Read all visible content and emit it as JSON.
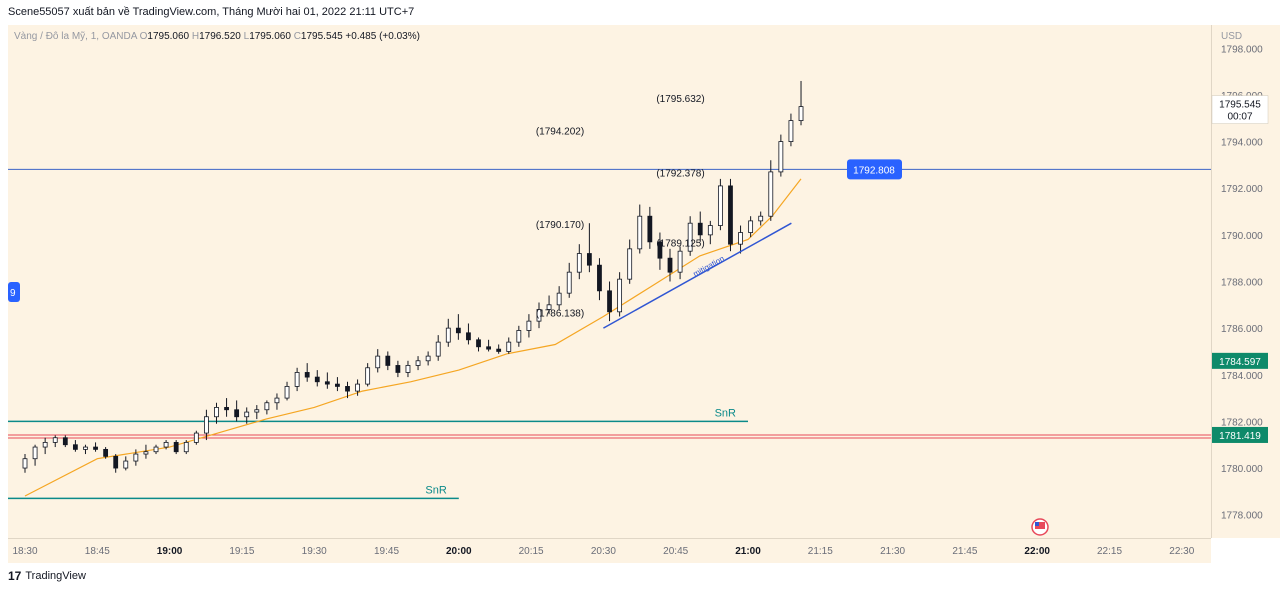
{
  "header": {
    "text": "Scene55057 xuất bản về TradingView.com, Tháng Mười hai 01, 2022 21:11 UTC+7"
  },
  "ohlc": {
    "symbol": "Vàng / Đô la Mỹ, 1, OANDA",
    "o_label": "O",
    "o": "1795.060",
    "h_label": "H",
    "h": "1796.520",
    "l_label": "L",
    "l": "1795.060",
    "c_label": "C",
    "c": "1795.545",
    "change": "+0.485 (+0.03%)"
  },
  "price_axis": {
    "currency": "USD"
  },
  "left_badge": "9",
  "footer": {
    "logo": "17",
    "brand": "TradingView"
  },
  "colors": {
    "background": "#fdf3e3",
    "ema": "#f5a623",
    "snr": "#0b8a8a",
    "hline": "#3d64c7",
    "red_line": "#e8485a",
    "trend": "#3056d3",
    "badge_blue": "#2962ff",
    "badge_green": "#0e8a6a"
  },
  "chart_data": {
    "type": "candlestick",
    "ylim": [
      1777.0,
      1799.0
    ],
    "y_ticks": [
      "1778.000",
      "1780.000",
      "1782.000",
      "1784.000",
      "1786.000",
      "1788.000",
      "1790.000",
      "1792.000",
      "1794.000",
      "1796.000",
      "1798.000"
    ],
    "x_ticks": [
      {
        "label": "18:30",
        "bold": false
      },
      {
        "label": "18:45",
        "bold": false
      },
      {
        "label": "19:00",
        "bold": true
      },
      {
        "label": "19:15",
        "bold": false
      },
      {
        "label": "19:30",
        "bold": false
      },
      {
        "label": "19:45",
        "bold": false
      },
      {
        "label": "20:00",
        "bold": true
      },
      {
        "label": "20:15",
        "bold": false
      },
      {
        "label": "20:30",
        "bold": false
      },
      {
        "label": "20:45",
        "bold": false
      },
      {
        "label": "21:00",
        "bold": true
      },
      {
        "label": "21:15",
        "bold": false
      },
      {
        "label": "21:30",
        "bold": false
      },
      {
        "label": "21:45",
        "bold": false
      },
      {
        "label": "22:00",
        "bold": true
      },
      {
        "label": "22:15",
        "bold": false
      },
      {
        "label": "22:30",
        "bold": false
      }
    ],
    "time_start": "18:30",
    "current_price": "1795.545",
    "countdown": "00:07",
    "horizontal_lines": [
      {
        "name": "blue-level",
        "price": 1792.808,
        "label": "1792.808"
      },
      {
        "name": "red-level-1",
        "price": 1781.419,
        "label": "1781.419"
      },
      {
        "name": "red-level-2",
        "price": 1781.29,
        "label": ""
      }
    ],
    "price_badges": [
      {
        "name": "green-price-badge",
        "price": 1784.597,
        "label": "1784.597"
      }
    ],
    "snr_lines": [
      {
        "price": 1782.0,
        "t_start": "18:30",
        "t_end": "21:00",
        "label": "SnR"
      },
      {
        "price": 1778.7,
        "t_start": "18:30",
        "t_end": "20:00",
        "label": "SnR"
      }
    ],
    "annotations": [
      {
        "text": "(1795.632)",
        "t": "20:46",
        "price": 1795.7
      },
      {
        "text": "(1794.202)",
        "t": "20:21",
        "price": 1794.3
      },
      {
        "text": "(1792.378)",
        "t": "20:46",
        "price": 1792.5
      },
      {
        "text": "(1790.170)",
        "t": "20:21",
        "price": 1790.3
      },
      {
        "text": "(1786.138)",
        "t": "20:21",
        "price": 1786.5
      },
      {
        "text": "(1789.125)",
        "t": "20:46",
        "price": 1789.5
      }
    ],
    "trendline": {
      "t1": "20:30",
      "p1": 1786.0,
      "t2": "21:09",
      "p2": 1790.5,
      "label": "mitigation"
    },
    "ema": [
      {
        "t": "18:30",
        "p": 1778.8
      },
      {
        "t": "18:45",
        "p": 1780.4
      },
      {
        "t": "19:00",
        "p": 1780.9
      },
      {
        "t": "19:10",
        "p": 1781.5
      },
      {
        "t": "19:20",
        "p": 1782.1
      },
      {
        "t": "19:30",
        "p": 1782.6
      },
      {
        "t": "19:40",
        "p": 1783.3
      },
      {
        "t": "19:50",
        "p": 1783.7
      },
      {
        "t": "20:00",
        "p": 1784.2
      },
      {
        "t": "20:10",
        "p": 1784.9
      },
      {
        "t": "20:20",
        "p": 1785.3
      },
      {
        "t": "20:30",
        "p": 1786.5
      },
      {
        "t": "20:40",
        "p": 1787.8
      },
      {
        "t": "20:50",
        "p": 1789.1
      },
      {
        "t": "21:00",
        "p": 1789.8
      },
      {
        "t": "21:05",
        "p": 1790.8
      },
      {
        "t": "21:11",
        "p": 1792.4
      }
    ],
    "candles": [
      [
        1780.0,
        1780.6,
        1779.8,
        1780.4
      ],
      [
        1780.4,
        1781.0,
        1780.1,
        1780.9
      ],
      [
        1780.9,
        1781.3,
        1780.6,
        1781.1
      ],
      [
        1781.1,
        1781.4,
        1780.9,
        1781.3
      ],
      [
        1781.3,
        1781.4,
        1780.9,
        1781.0
      ],
      [
        1781.0,
        1781.2,
        1780.7,
        1780.8
      ],
      [
        1780.8,
        1781.0,
        1780.6,
        1780.9
      ],
      [
        1780.9,
        1781.1,
        1780.7,
        1780.8
      ],
      [
        1780.8,
        1780.9,
        1780.4,
        1780.5
      ],
      [
        1780.5,
        1780.6,
        1779.8,
        1780.0
      ],
      [
        1780.0,
        1780.5,
        1779.9,
        1780.3
      ],
      [
        1780.3,
        1780.8,
        1780.1,
        1780.6
      ],
      [
        1780.6,
        1781.0,
        1780.4,
        1780.7
      ],
      [
        1780.7,
        1781.0,
        1780.6,
        1780.9
      ],
      [
        1780.9,
        1781.2,
        1780.8,
        1781.1
      ],
      [
        1781.1,
        1781.2,
        1780.6,
        1780.7
      ],
      [
        1780.7,
        1781.2,
        1780.6,
        1781.1
      ],
      [
        1781.1,
        1781.6,
        1781.0,
        1781.5
      ],
      [
        1781.5,
        1782.5,
        1781.2,
        1782.2
      ],
      [
        1782.2,
        1782.8,
        1781.9,
        1782.6
      ],
      [
        1782.6,
        1783.0,
        1782.2,
        1782.5
      ],
      [
        1782.5,
        1782.9,
        1782.0,
        1782.2
      ],
      [
        1782.2,
        1782.6,
        1781.9,
        1782.4
      ],
      [
        1782.4,
        1782.7,
        1782.1,
        1782.5
      ],
      [
        1782.5,
        1782.9,
        1782.3,
        1782.8
      ],
      [
        1782.8,
        1783.2,
        1782.5,
        1783.0
      ],
      [
        1783.0,
        1783.7,
        1782.9,
        1783.5
      ],
      [
        1783.5,
        1784.3,
        1783.3,
        1784.1
      ],
      [
        1784.1,
        1784.5,
        1783.7,
        1783.9
      ],
      [
        1783.9,
        1784.2,
        1783.5,
        1783.7
      ],
      [
        1783.7,
        1784.1,
        1783.4,
        1783.6
      ],
      [
        1783.6,
        1783.9,
        1783.3,
        1783.5
      ],
      [
        1783.5,
        1783.7,
        1783.0,
        1783.3
      ],
      [
        1783.3,
        1783.8,
        1783.1,
        1783.6
      ],
      [
        1783.6,
        1784.5,
        1783.5,
        1784.3
      ],
      [
        1784.3,
        1785.1,
        1784.1,
        1784.8
      ],
      [
        1784.8,
        1785.0,
        1784.2,
        1784.4
      ],
      [
        1784.4,
        1784.6,
        1783.9,
        1784.1
      ],
      [
        1784.1,
        1784.6,
        1783.9,
        1784.4
      ],
      [
        1784.4,
        1784.8,
        1784.2,
        1784.6
      ],
      [
        1784.6,
        1785.0,
        1784.4,
        1784.8
      ],
      [
        1784.8,
        1785.7,
        1784.6,
        1785.4
      ],
      [
        1785.4,
        1786.4,
        1785.2,
        1786.0
      ],
      [
        1786.0,
        1786.6,
        1785.5,
        1785.8
      ],
      [
        1785.8,
        1786.2,
        1785.3,
        1785.5
      ],
      [
        1785.5,
        1785.6,
        1785.0,
        1785.2
      ],
      [
        1785.2,
        1785.5,
        1785.0,
        1785.1
      ],
      [
        1785.1,
        1785.3,
        1784.9,
        1785.0
      ],
      [
        1785.0,
        1785.6,
        1784.9,
        1785.4
      ],
      [
        1785.4,
        1786.1,
        1785.2,
        1785.9
      ],
      [
        1785.9,
        1786.6,
        1785.6,
        1786.3
      ],
      [
        1786.3,
        1787.1,
        1786.0,
        1786.8
      ],
      [
        1786.8,
        1787.4,
        1786.6,
        1787.0
      ],
      [
        1787.0,
        1787.8,
        1786.8,
        1787.5
      ],
      [
        1787.5,
        1788.8,
        1787.3,
        1788.4
      ],
      [
        1788.4,
        1789.6,
        1788.1,
        1789.2
      ],
      [
        1789.2,
        1790.5,
        1788.4,
        1788.7
      ],
      [
        1788.7,
        1789.0,
        1787.2,
        1787.6
      ],
      [
        1787.6,
        1788.0,
        1786.3,
        1786.7
      ],
      [
        1786.7,
        1788.4,
        1786.5,
        1788.1
      ],
      [
        1788.1,
        1789.8,
        1787.9,
        1789.4
      ],
      [
        1789.4,
        1791.3,
        1789.2,
        1790.8
      ],
      [
        1790.8,
        1791.2,
        1789.4,
        1789.7
      ],
      [
        1789.7,
        1790.1,
        1788.5,
        1789.0
      ],
      [
        1789.0,
        1789.4,
        1788.0,
        1788.4
      ],
      [
        1788.4,
        1789.5,
        1788.1,
        1789.3
      ],
      [
        1789.3,
        1790.8,
        1789.1,
        1790.5
      ],
      [
        1790.5,
        1791.0,
        1789.7,
        1790.0
      ],
      [
        1790.0,
        1790.6,
        1789.6,
        1790.4
      ],
      [
        1790.4,
        1792.4,
        1790.2,
        1792.1
      ],
      [
        1792.1,
        1792.4,
        1789.3,
        1789.6
      ],
      [
        1789.6,
        1790.4,
        1789.2,
        1790.1
      ],
      [
        1790.1,
        1790.8,
        1789.9,
        1790.6
      ],
      [
        1790.6,
        1791.0,
        1790.4,
        1790.8
      ],
      [
        1790.8,
        1793.2,
        1790.6,
        1792.7
      ],
      [
        1792.7,
        1794.3,
        1792.5,
        1794.0
      ],
      [
        1794.0,
        1795.2,
        1793.8,
        1794.9
      ],
      [
        1794.9,
        1796.6,
        1794.7,
        1795.5
      ]
    ]
  }
}
